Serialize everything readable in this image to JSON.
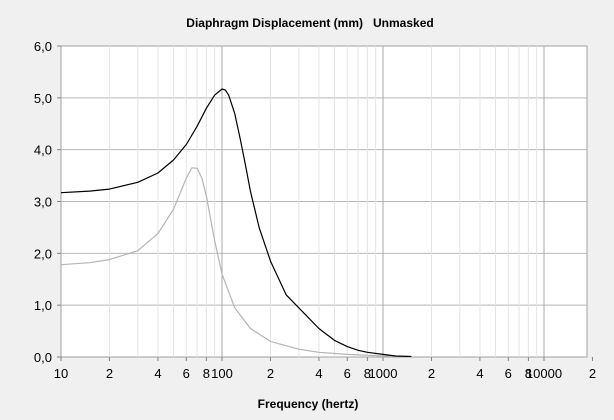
{
  "chart_data": {
    "type": "line",
    "title": "Diaphragm Displacement (mm)   Unmasked",
    "xlabel": "Frequency (hertz)",
    "ylabel": "",
    "x_scale": "log",
    "xlim": [
      10,
      20000
    ],
    "ylim": [
      0,
      6
    ],
    "grid": true,
    "y_tick_labels": [
      "0,0",
      "1,0",
      "2,0",
      "3,0",
      "4,0",
      "5,0",
      "6,0"
    ],
    "x_tick_labels": [
      "10",
      "2",
      "4",
      "6",
      "8",
      "100",
      "2",
      "4",
      "6",
      "8",
      "1000",
      "2",
      "4",
      "6",
      "8",
      "10000",
      "2"
    ],
    "series": [
      {
        "color": "#000000",
        "points": [
          [
            10,
            3.17
          ],
          [
            15,
            3.2
          ],
          [
            20,
            3.24
          ],
          [
            30,
            3.37
          ],
          [
            40,
            3.55
          ],
          [
            50,
            3.8
          ],
          [
            60,
            4.1
          ],
          [
            70,
            4.45
          ],
          [
            80,
            4.8
          ],
          [
            90,
            5.05
          ],
          [
            100,
            5.17
          ],
          [
            105,
            5.15
          ],
          [
            110,
            5.05
          ],
          [
            120,
            4.7
          ],
          [
            130,
            4.2
          ],
          [
            140,
            3.7
          ],
          [
            150,
            3.2
          ],
          [
            170,
            2.5
          ],
          [
            200,
            1.85
          ],
          [
            250,
            1.2
          ],
          [
            300,
            0.95
          ],
          [
            400,
            0.55
          ],
          [
            500,
            0.32
          ],
          [
            600,
            0.2
          ],
          [
            700,
            0.13
          ],
          [
            800,
            0.09
          ],
          [
            1000,
            0.05
          ],
          [
            1200,
            0.02
          ],
          [
            1500,
            0.01
          ]
        ]
      },
      {
        "color": "#b4b4b4",
        "points": [
          [
            10,
            1.78
          ],
          [
            15,
            1.82
          ],
          [
            20,
            1.88
          ],
          [
            30,
            2.05
          ],
          [
            40,
            2.38
          ],
          [
            50,
            2.85
          ],
          [
            60,
            3.45
          ],
          [
            65,
            3.65
          ],
          [
            70,
            3.64
          ],
          [
            75,
            3.45
          ],
          [
            80,
            3.1
          ],
          [
            90,
            2.25
          ],
          [
            100,
            1.6
          ],
          [
            120,
            0.95
          ],
          [
            150,
            0.55
          ],
          [
            200,
            0.3
          ],
          [
            300,
            0.15
          ],
          [
            400,
            0.09
          ],
          [
            600,
            0.05
          ],
          [
            1000,
            0.02
          ],
          [
            1500,
            0.005
          ]
        ]
      }
    ]
  }
}
